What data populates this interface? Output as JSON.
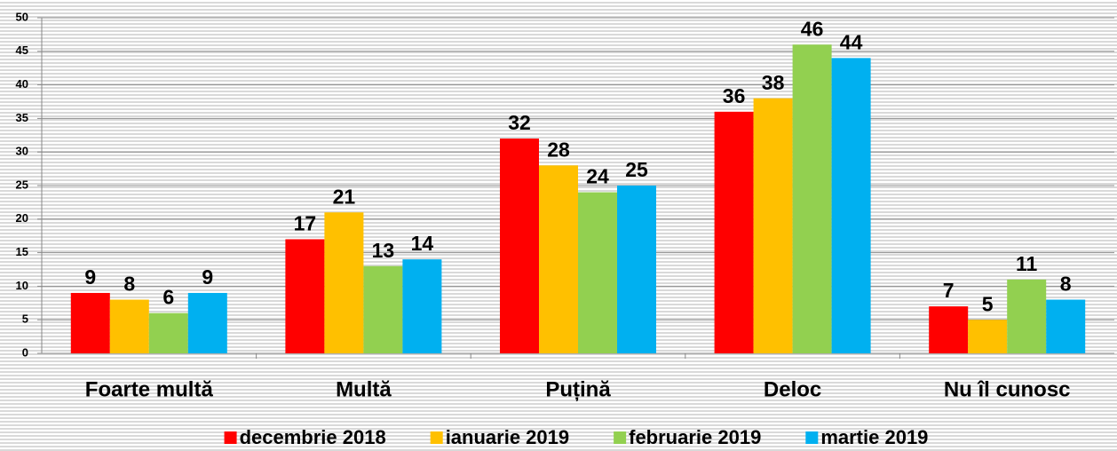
{
  "chart_data": {
    "type": "bar",
    "categories": [
      "Foarte multă",
      "Multă",
      "Puțină",
      "Deloc",
      "Nu îl cunosc"
    ],
    "series": [
      {
        "name": "decembrie 2018",
        "color": "#ff0000",
        "values": [
          9,
          17,
          32,
          36,
          7
        ]
      },
      {
        "name": "ianuarie 2019",
        "color": "#ffc000",
        "values": [
          8,
          21,
          28,
          38,
          5
        ]
      },
      {
        "name": "februarie 2019",
        "color": "#92d050",
        "values": [
          6,
          13,
          24,
          46,
          11
        ]
      },
      {
        "name": "martie 2019",
        "color": "#00b0f0",
        "values": [
          9,
          14,
          25,
          44,
          8
        ]
      }
    ],
    "ylim": [
      0,
      50
    ],
    "yticks": [
      0,
      5,
      10,
      15,
      20,
      25,
      30,
      35,
      40,
      45,
      50
    ],
    "grid": true,
    "legend": "bottom"
  }
}
